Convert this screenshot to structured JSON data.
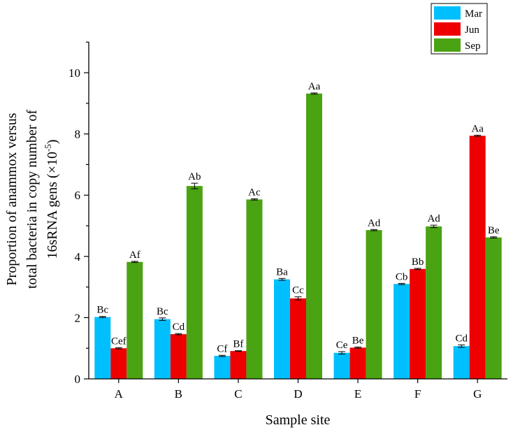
{
  "chart_data": {
    "type": "bar",
    "title": "",
    "xlabel": "Sample site",
    "ylabel_lines": [
      "Proportion of anammox versus",
      "total bacteria in copy number of",
      "16sRNA gens (×10",
      "-5",
      ")"
    ],
    "categories": [
      "A",
      "B",
      "C",
      "D",
      "E",
      "F",
      "G"
    ],
    "ylim": [
      0,
      11
    ],
    "yticks": [
      0,
      2,
      4,
      6,
      8,
      10
    ],
    "legend_position": "top-right",
    "series": [
      {
        "name": "Mar",
        "color": "#00bfff",
        "values": [
          2.02,
          1.95,
          0.75,
          3.25,
          0.85,
          3.1,
          1.07
        ],
        "errors": [
          0.02,
          0.04,
          0.02,
          0.03,
          0.04,
          0.02,
          0.04
        ],
        "labels": [
          "Bc",
          "Bc",
          "Cf",
          "Ba",
          "Ce",
          "Cb",
          "Cd"
        ]
      },
      {
        "name": "Jun",
        "color": "#ee0000",
        "values": [
          1.0,
          1.46,
          0.91,
          2.63,
          1.02,
          3.59,
          7.94
        ],
        "errors": [
          0.02,
          0.02,
          0.01,
          0.05,
          0.02,
          0.02,
          0.02
        ],
        "labels": [
          "Cef",
          "Cd",
          "Bf",
          "Cc",
          "Be",
          "Bb",
          "Aa"
        ]
      },
      {
        "name": "Sep",
        "color": "#4aa312",
        "values": [
          3.82,
          6.3,
          5.86,
          9.32,
          4.86,
          4.98,
          4.62
        ],
        "errors": [
          0.02,
          0.09,
          0.02,
          0.02,
          0.02,
          0.04,
          0.02
        ],
        "labels": [
          "Af",
          "Ab",
          "Ac",
          "Aa",
          "Ad",
          "Ad",
          "Be"
        ]
      }
    ]
  }
}
